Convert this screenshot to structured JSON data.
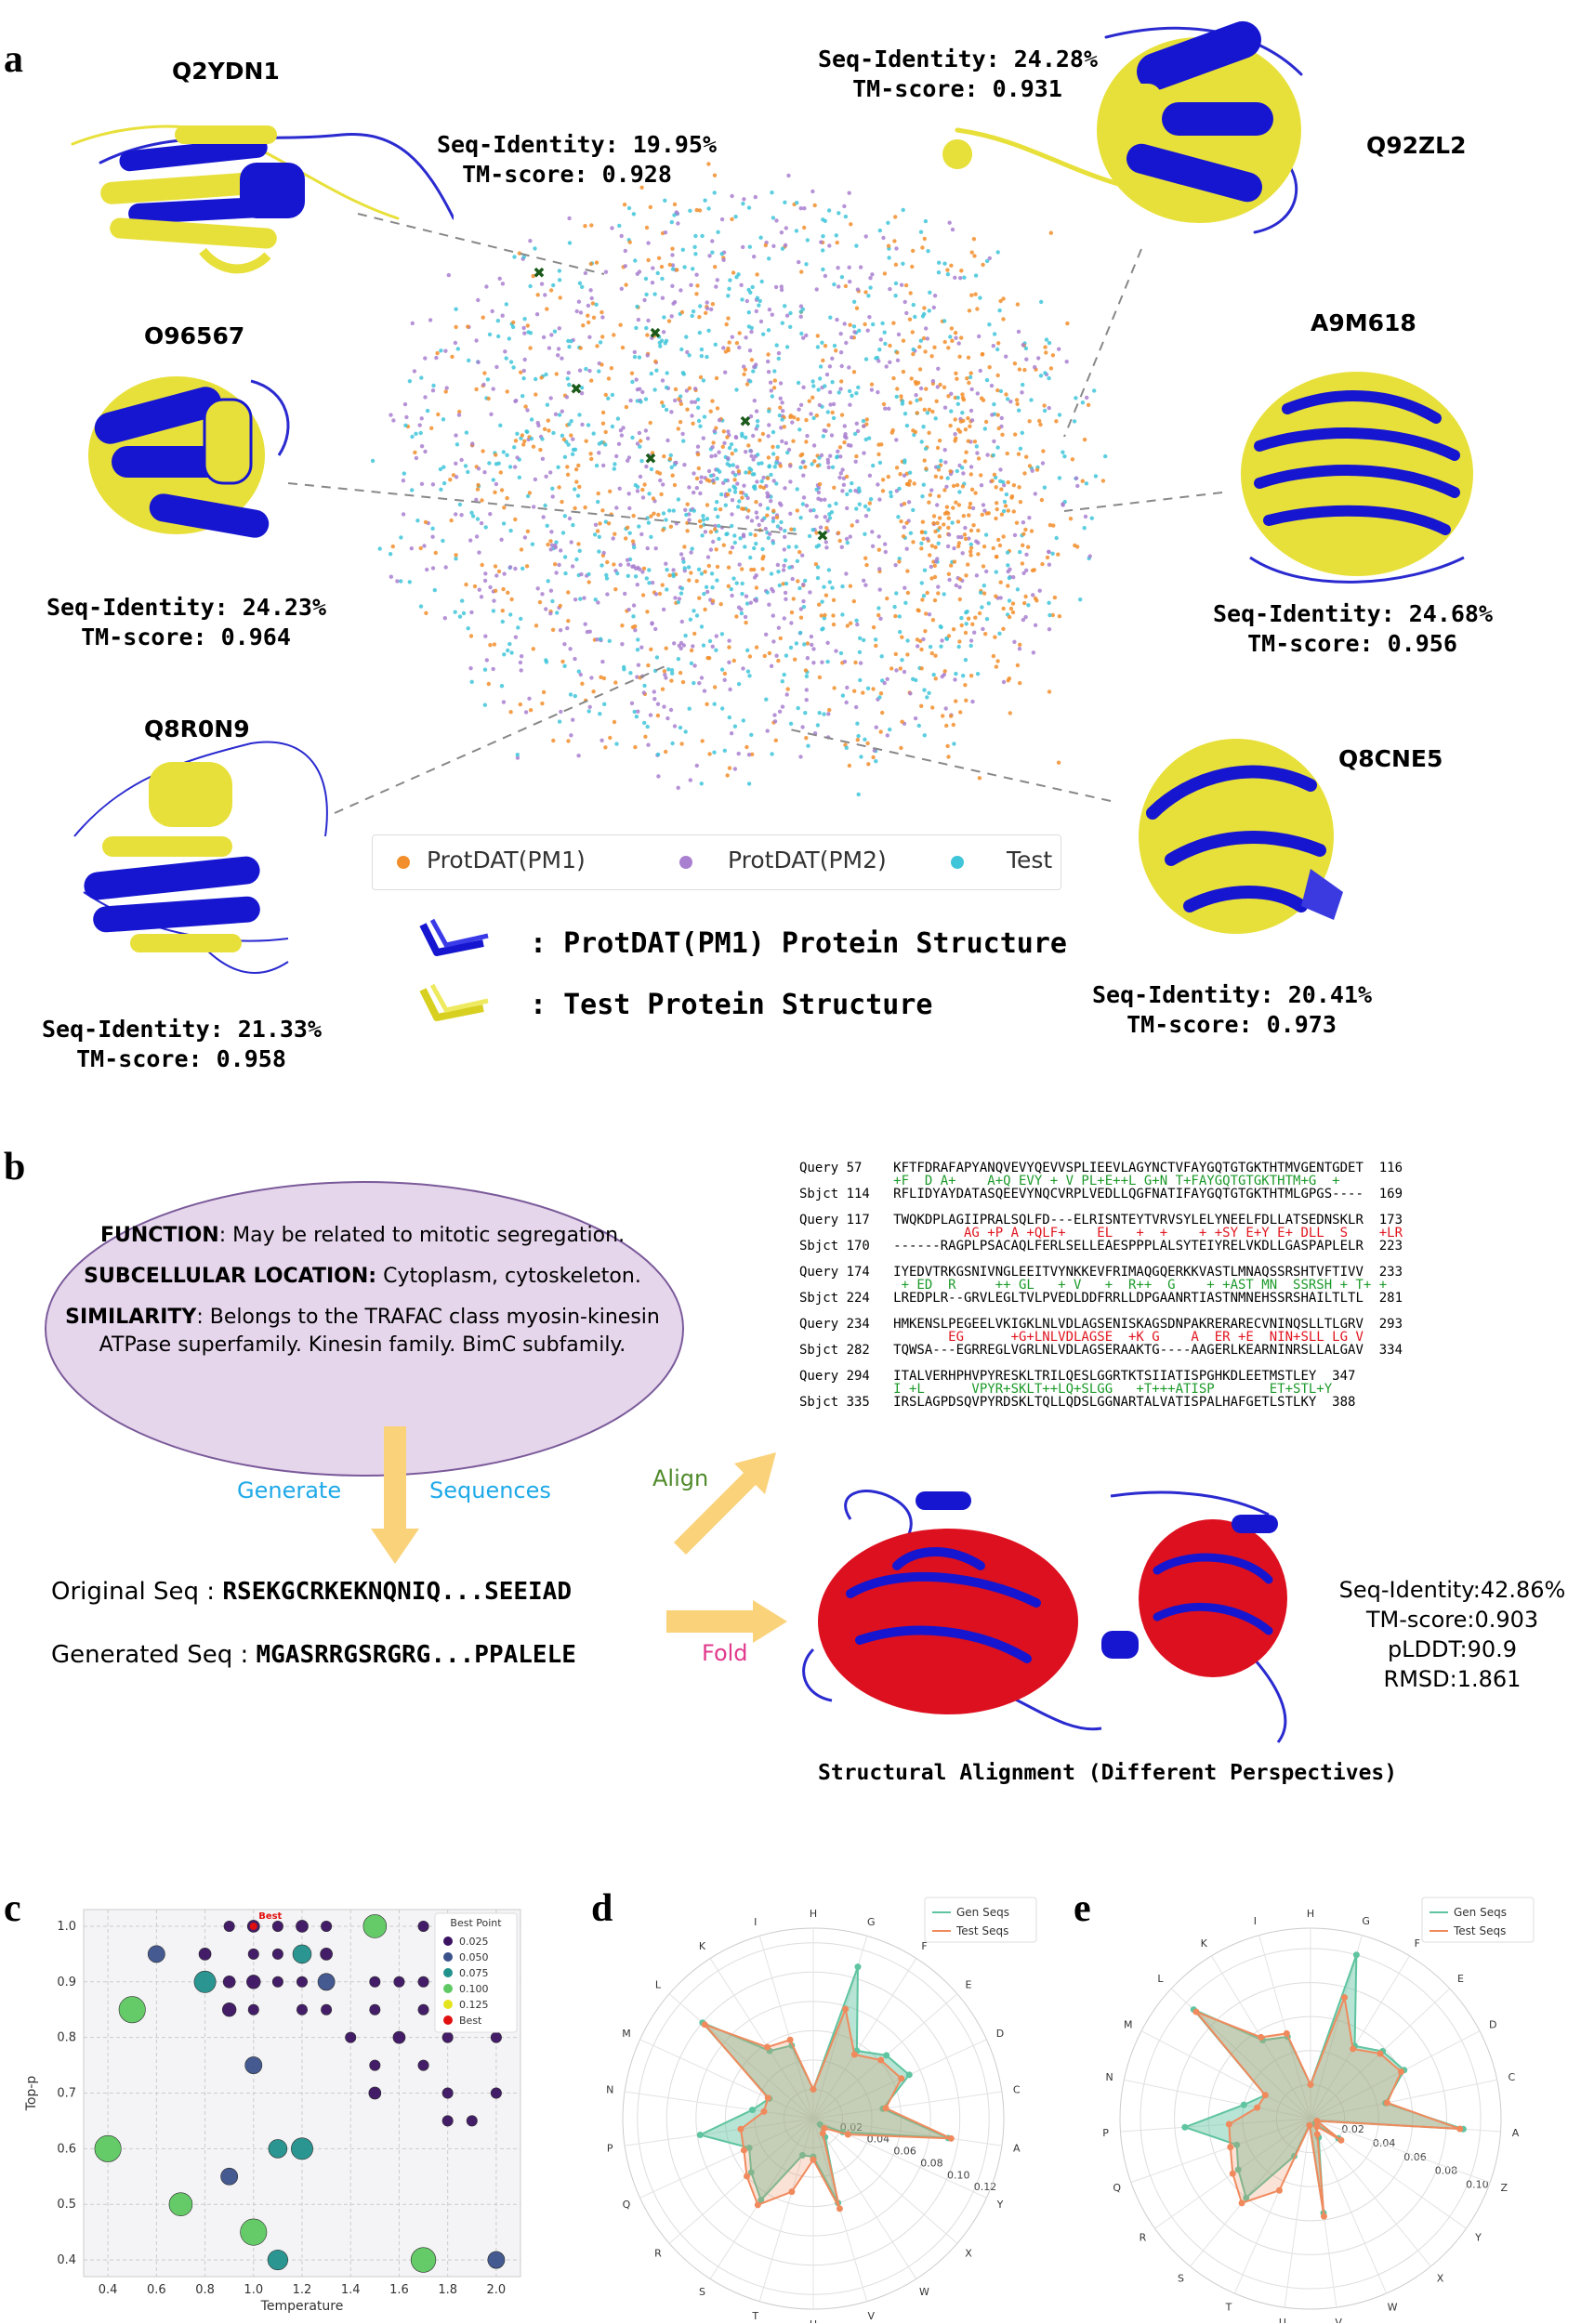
{
  "panels": {
    "a": "a",
    "b": "b",
    "c": "c",
    "d": "d",
    "e": "e"
  },
  "panel_a": {
    "proteins": [
      {
        "id": "Q2YDN1",
        "seq_identity": "Seq-Identity: 19.95%",
        "tm_score": "TM-score: 0.928"
      },
      {
        "id": "Q92ZL2",
        "seq_identity": "Seq-Identity: 24.28%",
        "tm_score": "TM-score: 0.931"
      },
      {
        "id": "O96567",
        "seq_identity": "Seq-Identity: 24.23%",
        "tm_score": "TM-score: 0.964"
      },
      {
        "id": "A9M618",
        "seq_identity": "Seq-Identity: 24.68%",
        "tm_score": "TM-score: 0.956"
      },
      {
        "id": "Q8R0N9",
        "seq_identity": "Seq-Identity: 21.33%",
        "tm_score": "TM-score: 0.958"
      },
      {
        "id": "Q8CNE5",
        "seq_identity": "Seq-Identity: 20.41%",
        "tm_score": "TM-score: 0.973"
      }
    ],
    "legend": [
      {
        "label": "ProtDAT(PM1)",
        "color": "#f28e2b"
      },
      {
        "label": "ProtDAT(PM2)",
        "color": "#a97fd0"
      },
      {
        "label": "Test",
        "color": "#3fc5d9"
      }
    ],
    "structure_legend": [
      {
        "label": ": ProtDAT(PM1) Protein Structure",
        "color": "#1a1ad6"
      },
      {
        "label": ": Test Protein Structure",
        "color": "#e8e03a"
      }
    ]
  },
  "panel_b": {
    "function_label": "FUNCTION",
    "function_text": ": May be related to mitotic segregation.",
    "location_label": "SUBCELLULAR LOCATION:",
    "location_text": " Cytoplasm, cytoskeleton.",
    "similarity_label": "SIMILARITY",
    "similarity_text": ": Belongs to the TRAFAC class myosin-kinesin ATPase superfamily. Kinesin family. BimC subfamily.",
    "generate": "Generate",
    "sequences": "Sequences",
    "align": "Align",
    "fold": "Fold",
    "original_seq_label": "Original Seq : ",
    "original_seq": "RSEKGCRKEKNQNIQ...SEEIAD",
    "generated_seq_label": "Generated Seq : ",
    "generated_seq": "MGASRRGSRGRG...PPALELE",
    "structural_alignment": "Structural Alignment (Different Perspectives)",
    "metrics": [
      "Seq-Identity:42.86%",
      "TM-score:0.903",
      "pLDDT:90.9",
      "RMSD:1.861"
    ],
    "alignment": [
      {
        "q_label": "Query",
        "q_start": "57",
        "q_seq": "KFTFDRAFAPYANQVEVYQEVVSPLIEEVLAGYNCTVFAYGQTGTGKTHTMVGENTGDET",
        "q_end": "116",
        "mid": "+F  D A+    A+Q EVY + V PL+E++L G+N T+FAYGQTGTGKTHTM+G  +",
        "s_label": "Sbjct",
        "s_start": "114",
        "s_seq": "RFLIDYAYDATASQEEVYNQCVRPLVEDLLQGFNATIFAYGQTGTGKTHTMLGPGS----",
        "s_end": "169"
      },
      {
        "q_label": "Query",
        "q_start": "117",
        "q_seq": "TWQKDPLAGIIPRALSQLFD---ELRISNTEYTVRVSYLELYNEELFDLLATSEDNSKLR",
        "q_end": "173",
        "mid": "         AG +P A +QLF+    EL   +  +    + +SY E+Y E+ DLL  S    +LR",
        "s_label": "Sbjct",
        "s_start": "170",
        "s_seq": "------RAGPLPSACAQLFERLSELLEAESPPPLALSYTEIYRELVKDLLGASPAPLELR",
        "s_end": "223"
      },
      {
        "q_label": "Query",
        "q_start": "174",
        "q_seq": "IYEDVTRKGSNIVNGLEEITVYNKKEVFRIMAQGQERKKVASTLMNAQSSRSHTVFTIVV",
        "q_end": "233",
        "mid": " + ED  R     ++ GL   + V   +  R++  G    + +AST MN  SSRSH + T+ +",
        "s_label": "Sbjct",
        "s_start": "224",
        "s_seq": "LREDPLR--GRVLEGLTVLPVEDLDDFRRLLDPGAANRTIASTNMNEHSSRSHAILTLTL",
        "s_end": "281"
      },
      {
        "q_label": "Query",
        "q_start": "234",
        "q_seq": "HMKENSLPEGEELVKIGKLNLVDLAGSENISKAGSDNPAKRERARECVNINQSLLTLGRV",
        "q_end": "293",
        "mid": "       EG      +G+LNLVDLAGSE  +K G    A  ER +E  NIN+SLL LG V",
        "s_label": "Sbjct",
        "s_start": "282",
        "s_seq": "TQWSA---EGRREGLVGRLNLVDLAGSERAAKTG----AAGERLKEARNINRSLLALGAV",
        "s_end": "334"
      },
      {
        "q_label": "Query",
        "q_start": "294",
        "q_seq": "ITALVERHPHVPYRESKLTRILQESLGGRTKTSIIATISPGHKDLEETMSTLEY",
        "q_end": "347",
        "mid": "I +L      VPYR+SKLT++LQ+SLGG   +T+++ATISP       ET+STL+Y",
        "s_label": "Sbjct",
        "s_start": "335",
        "s_seq": "IRSLAGPDSQVPYRDSKLTQLLQDSLGGNARTALVATISPALHAFGETLSTLKY",
        "s_end": "388"
      }
    ]
  },
  "panel_c": {
    "chart_data": {
      "type": "scatter",
      "xlabel": "Temperature",
      "ylabel": "Top-p",
      "xlim": [
        0.3,
        2.1
      ],
      "ylim": [
        0.37,
        1.03
      ],
      "x_ticks": [
        "0.4",
        "0.6",
        "0.8",
        "1.0",
        "1.2",
        "1.4",
        "1.6",
        "1.8",
        "2.0"
      ],
      "y_ticks": [
        "0.4",
        "0.5",
        "0.6",
        "0.7",
        "0.8",
        "0.9",
        "1.0"
      ],
      "legend_title": "Best Point",
      "legend": [
        "0.025",
        "0.050",
        "0.075",
        "0.100",
        "0.125",
        "Best"
      ],
      "best_label": "Best",
      "best": {
        "x": 1.0,
        "y": 1.0
      },
      "points": [
        {
          "x": 0.9,
          "y": 1.0,
          "v": 0.02
        },
        {
          "x": 1.0,
          "y": 1.0,
          "v": 0.03
        },
        {
          "x": 1.1,
          "y": 1.0,
          "v": 0.02
        },
        {
          "x": 1.2,
          "y": 1.0,
          "v": 0.03
        },
        {
          "x": 1.3,
          "y": 1.0,
          "v": 0.02
        },
        {
          "x": 1.5,
          "y": 1.0,
          "v": 0.1
        },
        {
          "x": 1.7,
          "y": 1.0,
          "v": 0.02
        },
        {
          "x": 1.9,
          "y": 1.0,
          "v": 0.02
        },
        {
          "x": 2.0,
          "y": 1.0,
          "v": 0.02
        },
        {
          "x": 0.6,
          "y": 0.95,
          "v": 0.06
        },
        {
          "x": 0.8,
          "y": 0.95,
          "v": 0.03
        },
        {
          "x": 1.0,
          "y": 0.95,
          "v": 0.02
        },
        {
          "x": 1.1,
          "y": 0.95,
          "v": 0.02
        },
        {
          "x": 1.2,
          "y": 0.95,
          "v": 0.07
        },
        {
          "x": 1.3,
          "y": 0.95,
          "v": 0.03
        },
        {
          "x": 0.8,
          "y": 0.9,
          "v": 0.09
        },
        {
          "x": 0.9,
          "y": 0.9,
          "v": 0.03
        },
        {
          "x": 1.0,
          "y": 0.9,
          "v": 0.04
        },
        {
          "x": 1.1,
          "y": 0.9,
          "v": 0.02
        },
        {
          "x": 1.2,
          "y": 0.9,
          "v": 0.02
        },
        {
          "x": 1.3,
          "y": 0.9,
          "v": 0.06
        },
        {
          "x": 1.5,
          "y": 0.9,
          "v": 0.02
        },
        {
          "x": 1.6,
          "y": 0.9,
          "v": 0.02
        },
        {
          "x": 1.7,
          "y": 0.9,
          "v": 0.02
        },
        {
          "x": 1.8,
          "y": 0.9,
          "v": 0.02
        },
        {
          "x": 2.0,
          "y": 0.9,
          "v": 0.02
        },
        {
          "x": 0.5,
          "y": 0.85,
          "v": 0.12
        },
        {
          "x": 0.9,
          "y": 0.85,
          "v": 0.04
        },
        {
          "x": 1.0,
          "y": 0.85,
          "v": 0.02
        },
        {
          "x": 1.2,
          "y": 0.85,
          "v": 0.02
        },
        {
          "x": 1.3,
          "y": 0.85,
          "v": 0.02
        },
        {
          "x": 1.5,
          "y": 0.85,
          "v": 0.02
        },
        {
          "x": 1.7,
          "y": 0.85,
          "v": 0.02
        },
        {
          "x": 1.9,
          "y": 0.85,
          "v": 0.02
        },
        {
          "x": 1.4,
          "y": 0.8,
          "v": 0.02
        },
        {
          "x": 1.6,
          "y": 0.8,
          "v": 0.03
        },
        {
          "x": 1.8,
          "y": 0.8,
          "v": 0.02
        },
        {
          "x": 2.0,
          "y": 0.8,
          "v": 0.02
        },
        {
          "x": 1.0,
          "y": 0.75,
          "v": 0.06
        },
        {
          "x": 1.5,
          "y": 0.75,
          "v": 0.02
        },
        {
          "x": 1.7,
          "y": 0.75,
          "v": 0.02
        },
        {
          "x": 1.5,
          "y": 0.7,
          "v": 0.03
        },
        {
          "x": 1.8,
          "y": 0.7,
          "v": 0.02
        },
        {
          "x": 2.0,
          "y": 0.7,
          "v": 0.02
        },
        {
          "x": 1.8,
          "y": 0.65,
          "v": 0.02
        },
        {
          "x": 1.9,
          "y": 0.65,
          "v": 0.02
        },
        {
          "x": 0.4,
          "y": 0.6,
          "v": 0.12
        },
        {
          "x": 1.1,
          "y": 0.6,
          "v": 0.07
        },
        {
          "x": 1.2,
          "y": 0.6,
          "v": 0.09
        },
        {
          "x": 0.9,
          "y": 0.55,
          "v": 0.06
        },
        {
          "x": 0.7,
          "y": 0.5,
          "v": 0.1
        },
        {
          "x": 1.0,
          "y": 0.45,
          "v": 0.12
        },
        {
          "x": 1.1,
          "y": 0.4,
          "v": 0.08
        },
        {
          "x": 1.7,
          "y": 0.4,
          "v": 0.11
        },
        {
          "x": 2.0,
          "y": 0.4,
          "v": 0.06
        }
      ]
    }
  },
  "panel_d": {
    "chart_data": {
      "type": "radar",
      "categories": [
        "H",
        "G",
        "F",
        "E",
        "D",
        "C",
        "A",
        "Y",
        "X",
        "W",
        "V",
        "U",
        "T",
        "S",
        "R",
        "Q",
        "P",
        "N",
        "M",
        "L",
        "K",
        "I"
      ],
      "radial_ticks": [
        "0.02",
        "0.04",
        "0.06",
        "0.08",
        "0.10",
        "0.12"
      ],
      "rmax": 0.13,
      "series": [
        {
          "name": "Gen Seqs",
          "color": "#5fc4a0",
          "values": [
            0.02,
            0.108,
            0.055,
            0.066,
            0.072,
            0.048,
            0.093,
            0.022,
            0.006,
            0.015,
            0.06,
            0.026,
            0.026,
            0.066,
            0.056,
            0.048,
            0.078,
            0.042,
            0.033,
            0.1,
            0.055,
            0.052
          ]
        },
        {
          "name": "Test Seqs",
          "color": "#f08a5d",
          "values": [
            0.02,
            0.078,
            0.052,
            0.061,
            0.066,
            0.05,
            0.095,
            0.026,
            0.01,
            0.012,
            0.064,
            0.028,
            0.052,
            0.07,
            0.06,
            0.052,
            0.05,
            0.034,
            0.034,
            0.098,
            0.058,
            0.056
          ]
        }
      ]
    }
  },
  "panel_e": {
    "chart_data": {
      "type": "radar",
      "categories": [
        "H",
        "G",
        "F",
        "E",
        "D",
        "C",
        "A",
        "Z",
        "Y",
        "X",
        "W",
        "V",
        "U",
        "T",
        "S",
        "R",
        "Q",
        "P",
        "N",
        "M",
        "L",
        "K",
        "I"
      ],
      "radial_ticks": [
        "0.02",
        "0.04",
        "0.06",
        "0.08",
        "0.10"
      ],
      "rmax": 0.112,
      "series": [
        {
          "name": "Gen Seqs",
          "color": "#5fc4a0",
          "values": [
            0.02,
            0.1,
            0.05,
            0.058,
            0.062,
            0.045,
            0.09,
            0.004,
            0.02,
            0.004,
            0.012,
            0.056,
            0.004,
            0.024,
            0.06,
            0.052,
            0.046,
            0.074,
            0.04,
            0.03,
            0.094,
            0.054,
            0.05
          ]
        },
        {
          "name": "Test Seqs",
          "color": "#f08a5d",
          "values": [
            0.02,
            0.074,
            0.048,
            0.056,
            0.06,
            0.046,
            0.088,
            0.004,
            0.022,
            0.006,
            0.01,
            0.058,
            0.004,
            0.046,
            0.064,
            0.056,
            0.05,
            0.048,
            0.032,
            0.03,
            0.092,
            0.056,
            0.052
          ]
        }
      ]
    }
  }
}
